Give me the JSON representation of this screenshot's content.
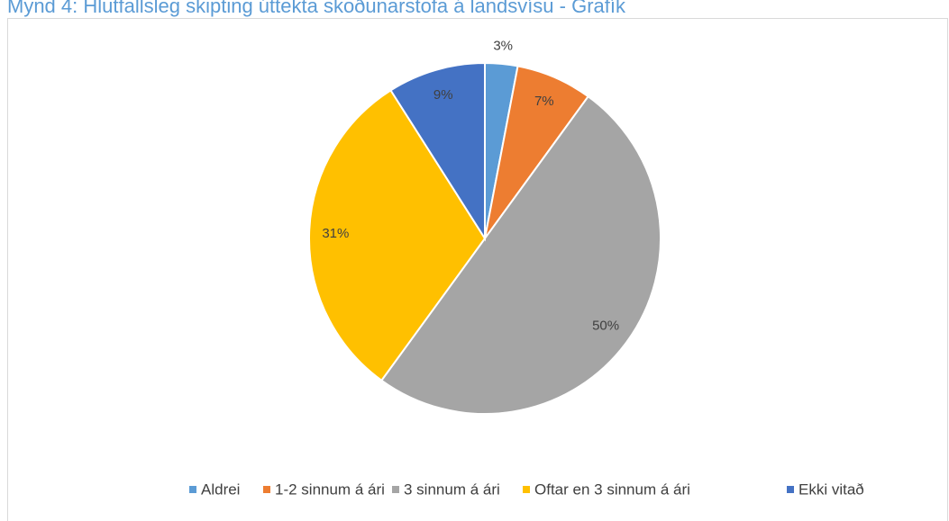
{
  "chart_data": {
    "type": "pie",
    "title": "Mynd 4: Hlutfallsleg skipting úttekta skoðunarstofa á landsvísu - Grafík",
    "categories": [
      "Aldrei",
      "1-2 sinnum á ári",
      "3 sinnum á ári",
      "Oftar en 3 sinnum á ári",
      "Ekki vitað"
    ],
    "values": [
      3,
      7,
      50,
      31,
      9
    ],
    "value_labels": [
      "3%",
      "7%",
      "50%",
      "31%",
      "9%"
    ],
    "colors": [
      "#5b9bd5",
      "#ed7d31",
      "#a5a5a5",
      "#ffc000",
      "#4472c4"
    ],
    "legend": "bottom"
  }
}
